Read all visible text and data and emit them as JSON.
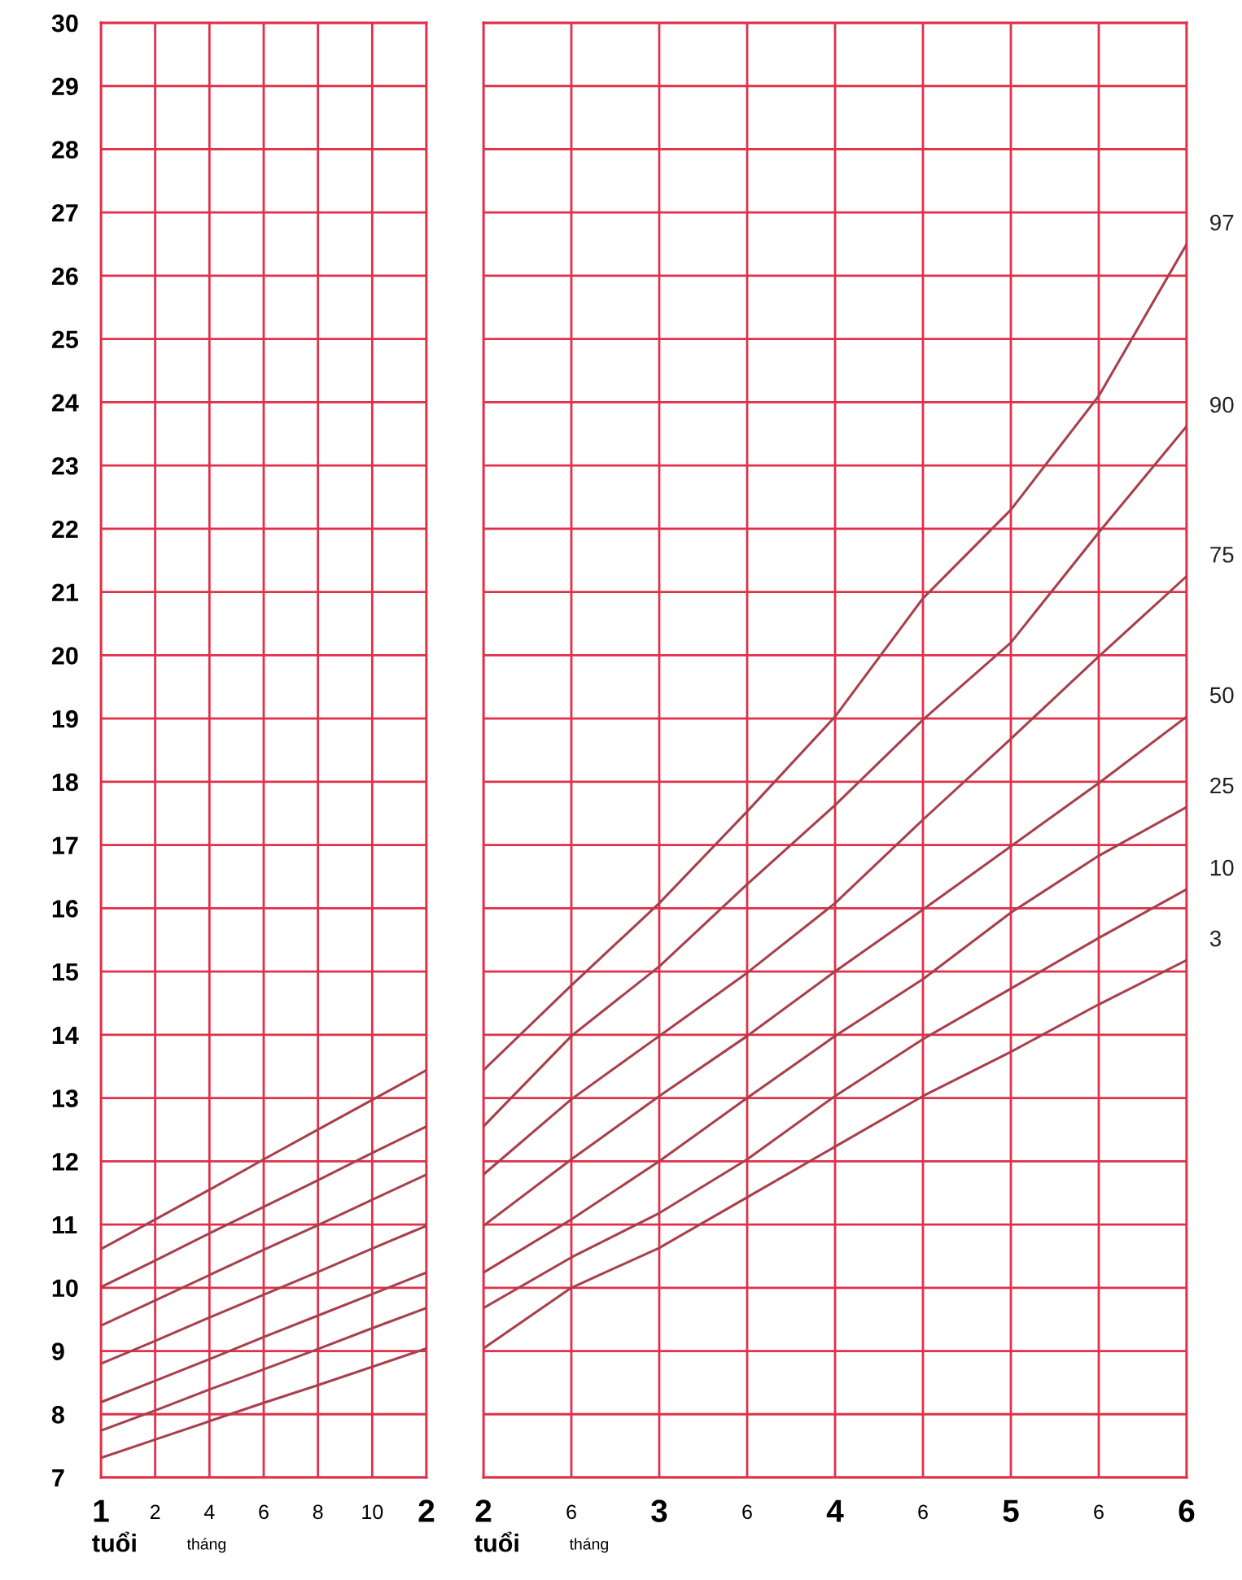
{
  "chart_data": [
    {
      "type": "line",
      "categories": [
        "1",
        "2",
        "4",
        "6",
        "8",
        "10",
        "2"
      ],
      "ylim": [
        7,
        30
      ],
      "yticks": [
        7,
        8,
        9,
        10,
        11,
        12,
        13,
        14,
        15,
        16,
        17,
        18,
        19,
        20,
        21,
        22,
        23,
        24,
        25,
        26,
        27,
        28,
        29,
        30
      ],
      "grid": true,
      "legend": false,
      "marker": "none",
      "line_style": "solid",
      "annotations": [
        "tuổi",
        "tháng"
      ],
      "series": [
        {
          "color": "#a8404c",
          "values": [
            10.61,
            11.08,
            11.55,
            12.03,
            12.5,
            12.97,
            13.44
          ]
        },
        {
          "color": "#a8404c",
          "values": [
            10.01,
            10.43,
            10.86,
            11.28,
            11.7,
            12.13,
            12.55
          ]
        },
        {
          "color": "#a8404c",
          "values": [
            9.4,
            9.8,
            10.2,
            10.6,
            10.99,
            11.39,
            11.79
          ]
        },
        {
          "color": "#a8404c",
          "values": [
            8.8,
            9.16,
            9.53,
            9.89,
            10.25,
            10.62,
            10.98
          ]
        },
        {
          "color": "#a8404c",
          "values": [
            8.19,
            8.53,
            8.87,
            9.22,
            9.56,
            9.9,
            10.24
          ]
        },
        {
          "color": "#a8404c",
          "values": [
            7.74,
            8.06,
            8.39,
            8.71,
            9.03,
            9.36,
            9.68
          ]
        },
        {
          "color": "#a8404c",
          "values": [
            7.31,
            7.6,
            7.89,
            8.18,
            8.46,
            8.75,
            9.04
          ]
        }
      ]
    },
    {
      "type": "line",
      "categories": [
        "2",
        "6",
        "3",
        "6",
        "4",
        "6",
        "5",
        "6",
        "6"
      ],
      "ylim": [
        7,
        30
      ],
      "yticks": [
        7,
        8,
        9,
        10,
        11,
        12,
        13,
        14,
        15,
        16,
        17,
        18,
        19,
        20,
        21,
        22,
        23,
        24,
        25,
        26,
        27,
        28,
        29,
        30
      ],
      "tick_labels": "x",
      "grid": true,
      "legend": false,
      "marker": "none",
      "line_style": "solid",
      "annotations": [
        "tuổi",
        "tháng"
      ],
      "series": [
        {
          "name": "97",
          "color": "#a8404c",
          "values": [
            13.44,
            14.78,
            16.08,
            17.53,
            19.03,
            20.9,
            22.3,
            24.1,
            26.5
          ]
        },
        {
          "name": "90",
          "color": "#a8404c",
          "values": [
            12.55,
            13.98,
            15.08,
            16.38,
            17.63,
            18.98,
            20.2,
            21.94,
            23.62
          ]
        },
        {
          "name": "75",
          "color": "#a8404c",
          "values": [
            11.79,
            12.98,
            13.98,
            14.98,
            16.08,
            17.4,
            18.68,
            19.98,
            21.25
          ]
        },
        {
          "name": "50",
          "color": "#a8404c",
          "values": [
            10.98,
            12.03,
            13.03,
            13.98,
            15.0,
            15.98,
            16.98,
            17.98,
            19.03
          ]
        },
        {
          "name": "25",
          "color": "#a8404c",
          "values": [
            10.24,
            11.08,
            12.0,
            13.0,
            13.98,
            14.88,
            15.93,
            16.83,
            17.6
          ]
        },
        {
          "name": "10",
          "color": "#a8404c",
          "values": [
            9.68,
            10.48,
            11.18,
            12.03,
            13.03,
            13.93,
            14.73,
            15.53,
            16.3
          ]
        },
        {
          "name": "3",
          "color": "#a8404c",
          "values": [
            9.04,
            10.0,
            10.63,
            11.43,
            12.23,
            13.03,
            13.73,
            14.48,
            15.18
          ]
        }
      ]
    }
  ]
}
